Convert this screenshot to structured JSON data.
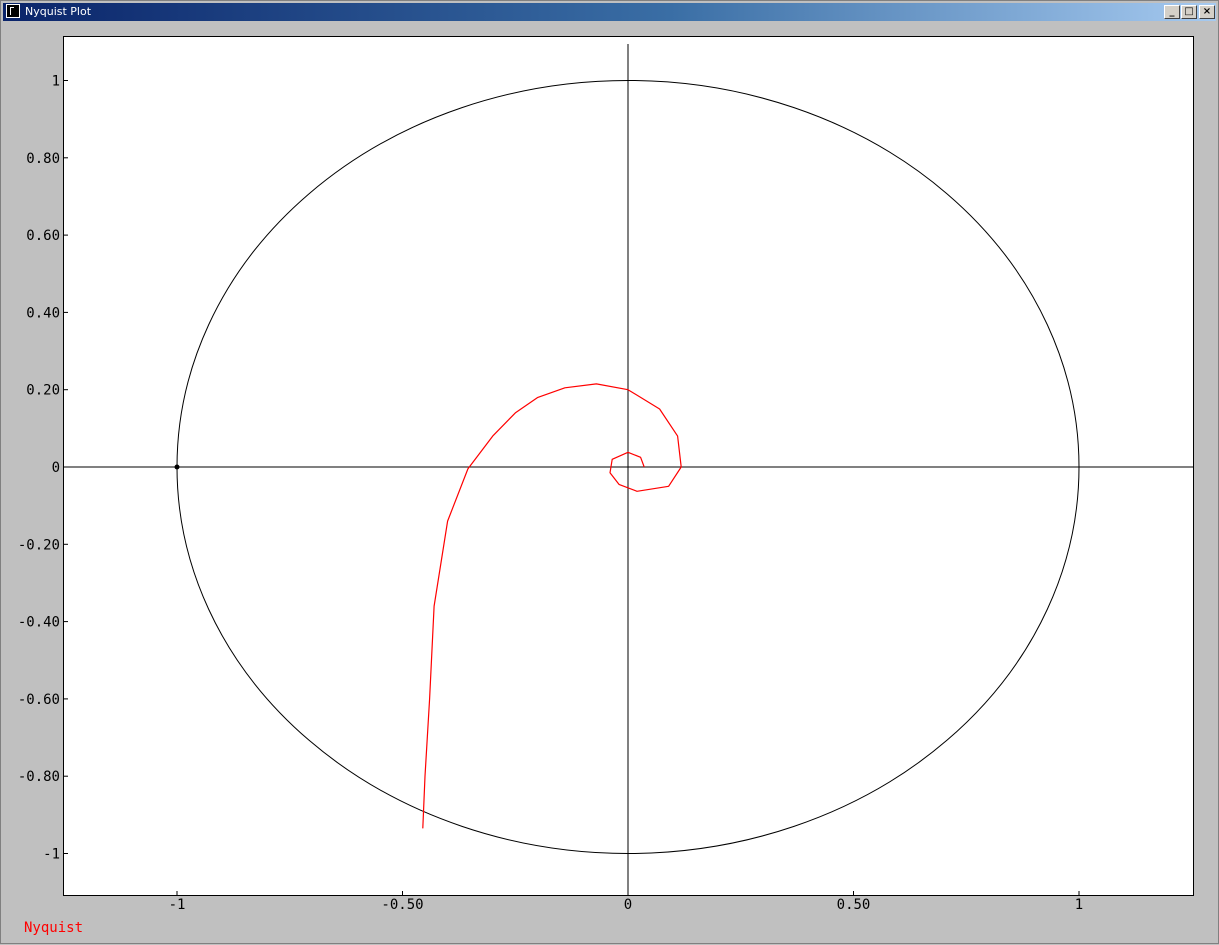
{
  "window": {
    "title": "Nyquist Plot",
    "minimize_icon": "minimize-icon",
    "maximize_icon": "maximize-icon",
    "close_icon": "close-icon"
  },
  "legend": {
    "label": "Nyquist",
    "color": "#ff0000"
  },
  "chart_data": {
    "type": "line",
    "title": "",
    "xlabel": "",
    "ylabel": "",
    "xlim": [
      -1.25,
      1.25
    ],
    "ylim": [
      -1.11,
      1.11
    ],
    "x_ticks": [
      {
        "value": -1,
        "label": "-1"
      },
      {
        "value": -0.5,
        "label": "-0.50"
      },
      {
        "value": 0,
        "label": "0"
      },
      {
        "value": 0.5,
        "label": "0.50"
      },
      {
        "value": 1,
        "label": "1"
      }
    ],
    "y_ticks": [
      {
        "value": 1,
        "label": "1"
      },
      {
        "value": 0.8,
        "label": "0.80"
      },
      {
        "value": 0.6,
        "label": "0.60"
      },
      {
        "value": 0.4,
        "label": "0.40"
      },
      {
        "value": 0.2,
        "label": "0.20"
      },
      {
        "value": 0,
        "label": "0"
      },
      {
        "value": -0.2,
        "label": "-0.20"
      },
      {
        "value": -0.4,
        "label": "-0.40"
      },
      {
        "value": -0.6,
        "label": "-0.60"
      },
      {
        "value": -0.8,
        "label": "-0.80"
      },
      {
        "value": -1,
        "label": "-1"
      }
    ],
    "grid": false,
    "unit_circle": {
      "center": [
        0,
        0
      ],
      "radius": 1,
      "color": "#000000"
    },
    "critical_point": {
      "x": -1,
      "y": 0
    },
    "series": [
      {
        "name": "Nyquist",
        "color": "#ff0000",
        "points": [
          [
            -0.455,
            -0.935
          ],
          [
            -0.45,
            -0.8
          ],
          [
            -0.44,
            -0.6
          ],
          [
            -0.43,
            -0.36
          ],
          [
            -0.4,
            -0.14
          ],
          [
            -0.355,
            -0.005
          ],
          [
            -0.3,
            0.08
          ],
          [
            -0.25,
            0.14
          ],
          [
            -0.2,
            0.18
          ],
          [
            -0.14,
            0.205
          ],
          [
            -0.07,
            0.215
          ],
          [
            0.0,
            0.2
          ],
          [
            0.07,
            0.15
          ],
          [
            0.11,
            0.08
          ],
          [
            0.118,
            0.0
          ],
          [
            0.09,
            -0.05
          ],
          [
            0.02,
            -0.063
          ],
          [
            -0.02,
            -0.045
          ],
          [
            -0.04,
            -0.015
          ],
          [
            -0.035,
            0.02
          ],
          [
            0.0,
            0.038
          ],
          [
            0.028,
            0.025
          ],
          [
            0.036,
            0.0
          ]
        ]
      }
    ]
  }
}
